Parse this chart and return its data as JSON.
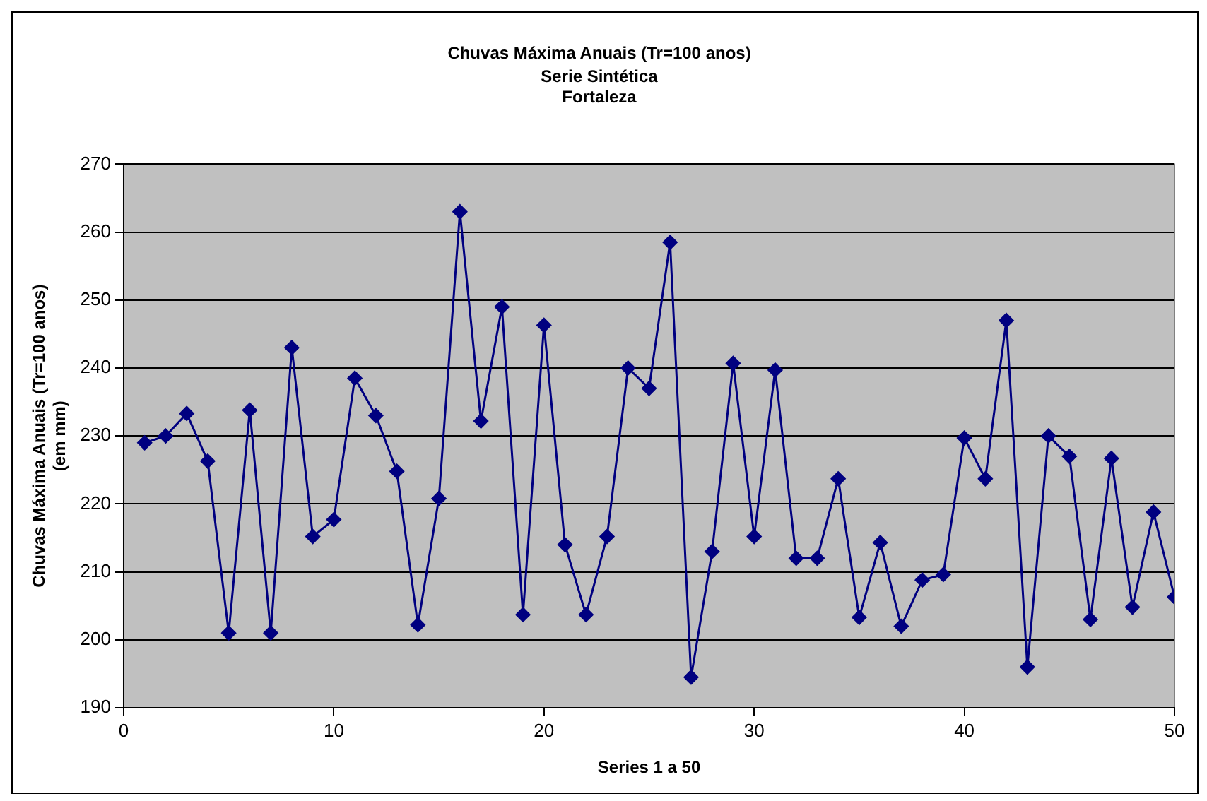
{
  "chart_data": {
    "type": "line",
    "title": "Chuvas Máxima Anuais (Tr=100 anos)",
    "subtitle": "Serie Sintética\nFortaleza",
    "xlabel": "Series 1 a 50",
    "ylabel": "Chuvas Máxima Anuais (Tr=100 anos)\n(em mm)",
    "x": [
      1,
      2,
      3,
      4,
      5,
      6,
      7,
      8,
      9,
      10,
      11,
      12,
      13,
      14,
      15,
      16,
      17,
      18,
      19,
      20,
      21,
      22,
      23,
      24,
      25,
      26,
      27,
      28,
      29,
      30,
      31,
      32,
      33,
      34,
      35,
      36,
      37,
      38,
      39,
      40,
      41,
      42,
      43,
      44,
      45,
      46,
      47,
      48,
      49,
      50
    ],
    "series": [
      {
        "color": "#000080",
        "values": [
          229,
          230,
          233.3,
          226.3,
          201,
          233.8,
          201,
          243,
          215.2,
          217.7,
          238.5,
          233,
          224.8,
          202.2,
          220.8,
          263,
          232.2,
          249,
          203.7,
          246.3,
          214,
          203.7,
          215.2,
          240,
          237,
          258.5,
          194.5,
          213,
          240.7,
          215.2,
          239.7,
          212,
          212,
          223.7,
          203.3,
          214.3,
          202,
          208.8,
          209.6,
          229.7,
          223.7,
          247,
          196,
          230,
          227,
          203,
          226.7,
          204.8,
          218.8,
          206.3
        ]
      }
    ],
    "xlim": [
      0,
      50
    ],
    "xticks": [
      0,
      10,
      20,
      30,
      40,
      50
    ],
    "ylim": [
      190,
      270
    ],
    "yticks": [
      190,
      200,
      210,
      220,
      230,
      240,
      250,
      260,
      270
    ],
    "grid": "y",
    "legend": false,
    "marker": "diamond",
    "line_style": "solid"
  }
}
